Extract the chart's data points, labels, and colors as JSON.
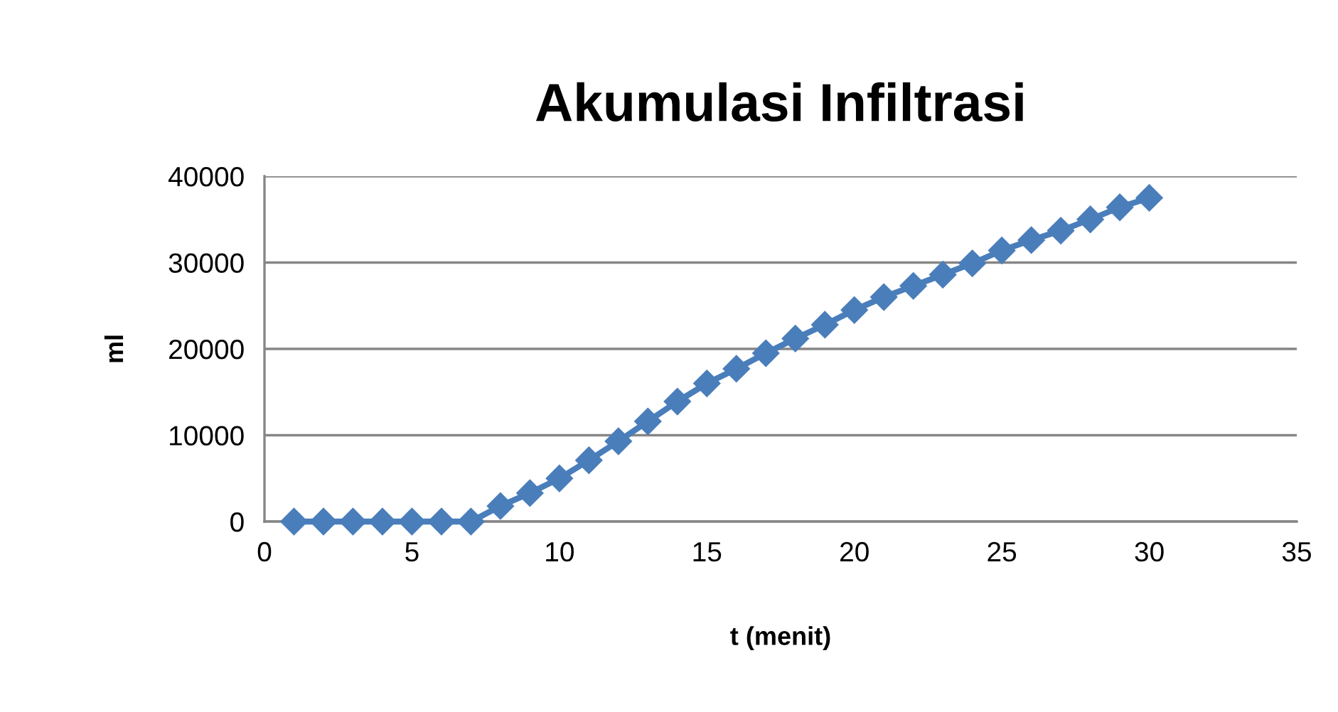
{
  "chart_data": {
    "type": "line",
    "title": "Akumulasi Infiltrasi",
    "xlabel": "t (menit)",
    "ylabel": "ml",
    "x": [
      1,
      2,
      3,
      4,
      5,
      6,
      7,
      8,
      9,
      10,
      11,
      12,
      13,
      14,
      15,
      16,
      17,
      18,
      19,
      20,
      21,
      22,
      23,
      24,
      25,
      26,
      27,
      28,
      29,
      30
    ],
    "series": [
      {
        "color": "#4a7ebb",
        "values": [
          0,
          0,
          0,
          0,
          0,
          0,
          0,
          1800,
          3300,
          5000,
          7100,
          9300,
          11600,
          13900,
          16000,
          17700,
          19500,
          21200,
          22800,
          24500,
          26000,
          27300,
          28600,
          29900,
          31400,
          32600,
          33700,
          35000,
          36400,
          37500
        ]
      }
    ],
    "xlim": [
      0,
      35
    ],
    "xticks": [
      0,
      5,
      10,
      15,
      20,
      25,
      30,
      35
    ],
    "ylim": [
      0,
      40000
    ],
    "yticks": [
      0,
      10000,
      20000,
      30000,
      40000
    ],
    "grid": "y",
    "marker": "diamond",
    "line_style": "solid",
    "legend": false
  }
}
